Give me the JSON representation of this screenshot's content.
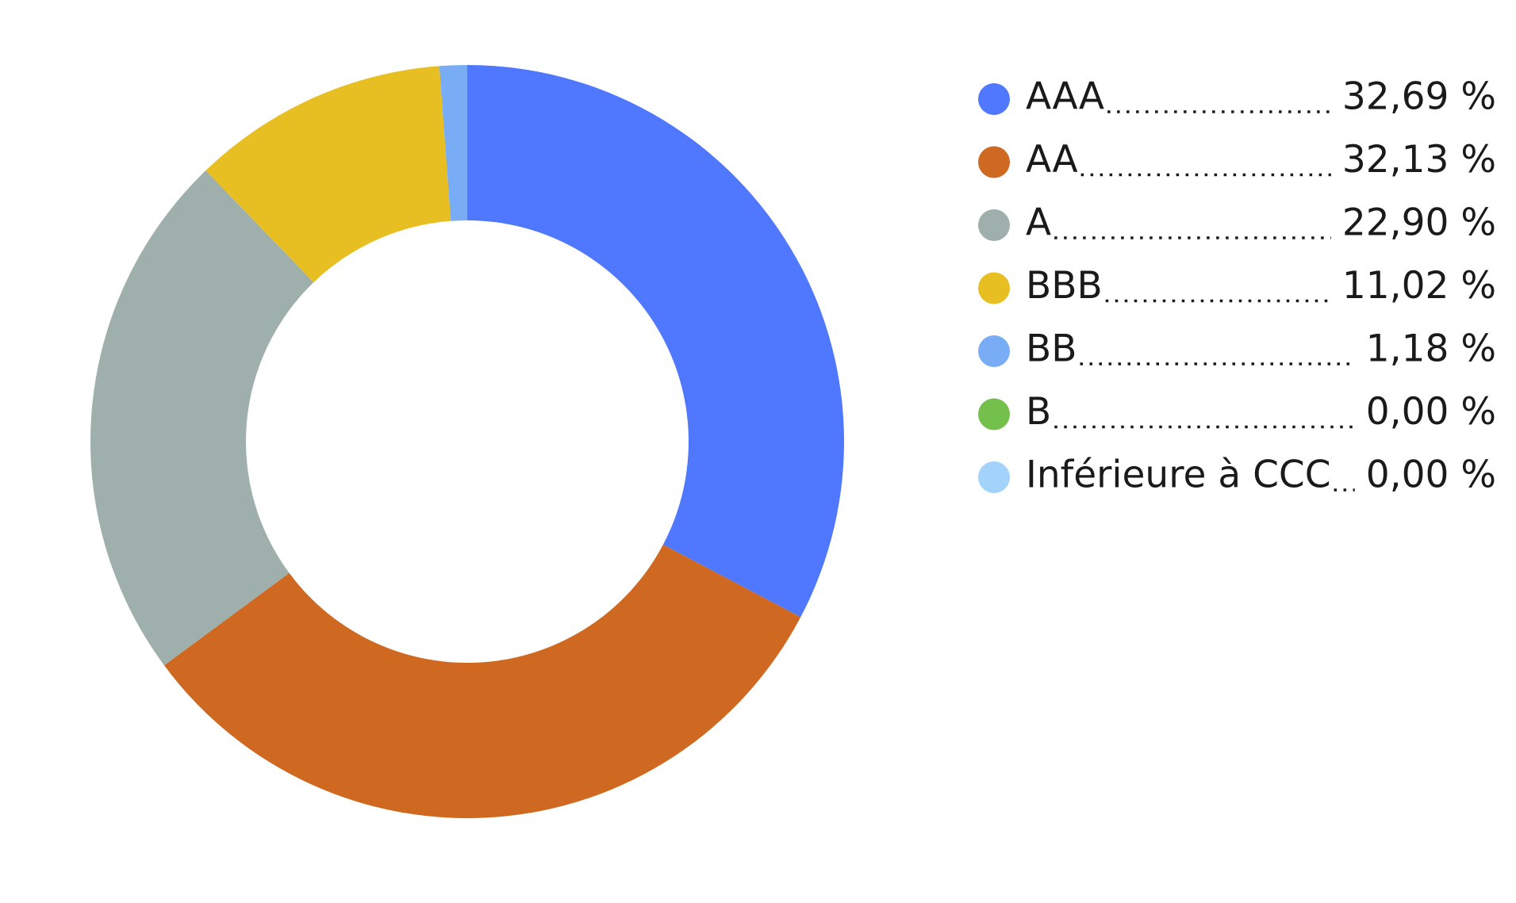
{
  "chart_data": {
    "type": "donut",
    "categories": [
      "AAA",
      "AA",
      "A",
      "BBB",
      "BB",
      "B",
      "Inférieure à CCC"
    ],
    "values": [
      32.69,
      32.13,
      22.9,
      11.02,
      1.18,
      0.0,
      0.0
    ],
    "value_labels": [
      "32,69 %",
      "32,13 %",
      "22,90 %",
      "11,02 %",
      "1,18 %",
      "0,00 %",
      "0,00 %"
    ],
    "colors": [
      "#4f78fe",
      "#cf6820",
      "#9eafac",
      "#e8bf22",
      "#78acf5",
      "#74c04d",
      "#a3d3fa"
    ],
    "legend": "right"
  }
}
